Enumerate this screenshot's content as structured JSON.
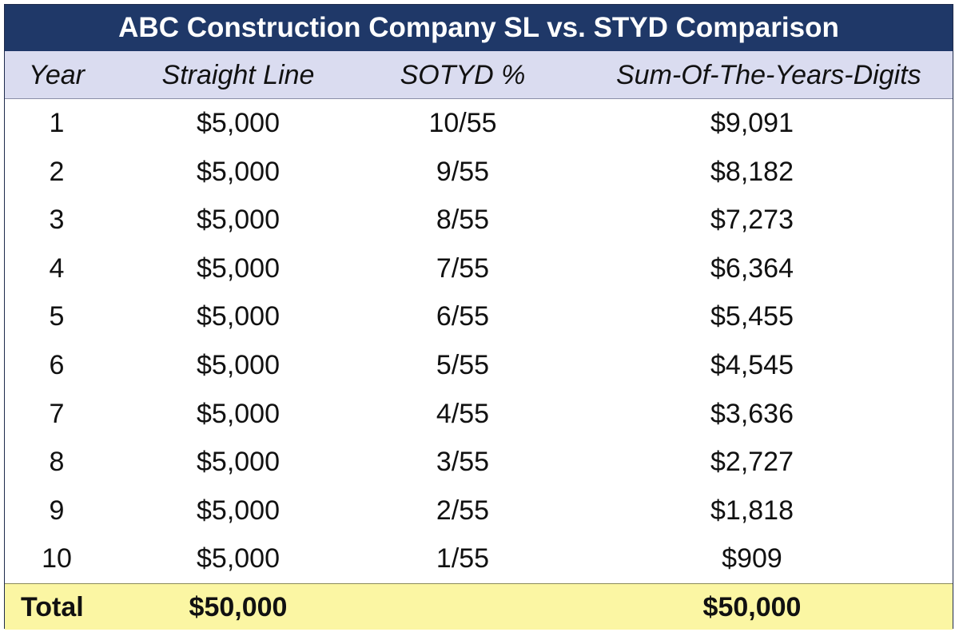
{
  "header": {
    "title": "ABC Construction Company SL vs. STYD Comparison"
  },
  "table": {
    "columns": [
      "Year",
      "Straight Line",
      "SOTYD %",
      "Sum-Of-The-Years-Digits"
    ],
    "rows": [
      [
        "1",
        "$5,000",
        "10/55",
        "$9,091"
      ],
      [
        "2",
        "$5,000",
        "9/55",
        "$8,182"
      ],
      [
        "3",
        "$5,000",
        "8/55",
        "$7,273"
      ],
      [
        "4",
        "$5,000",
        "7/55",
        "$6,364"
      ],
      [
        "5",
        "$5,000",
        "6/55",
        "$5,455"
      ],
      [
        "6",
        "$5,000",
        "5/55",
        "$4,545"
      ],
      [
        "7",
        "$5,000",
        "4/55",
        "$3,636"
      ],
      [
        "8",
        "$5,000",
        "3/55",
        "$2,727"
      ],
      [
        "9",
        "$5,000",
        "2/55",
        "$1,818"
      ],
      [
        "10",
        "$5,000",
        "1/55",
        "$909"
      ]
    ],
    "total": {
      "label": "Total",
      "straight_line": "$50,000",
      "sum_of_years_digits": "$50,000"
    }
  }
}
